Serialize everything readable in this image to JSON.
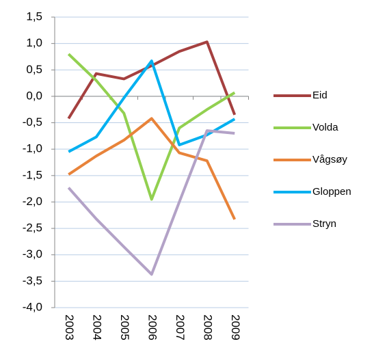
{
  "chart_data": {
    "type": "line",
    "categories": [
      "2003",
      "2004",
      "2005",
      "2006",
      "2007",
      "2008",
      "2009"
    ],
    "series": [
      {
        "name": "Eid",
        "color": "#a5403f",
        "values": [
          -0.42,
          0.43,
          0.33,
          0.58,
          0.85,
          1.03,
          -0.35
        ]
      },
      {
        "name": "Volda",
        "color": "#92d050",
        "values": [
          0.8,
          0.3,
          -0.32,
          -1.95,
          -0.6,
          -0.25,
          0.07
        ]
      },
      {
        "name": "Vågsøy",
        "color": "#e8833a",
        "values": [
          -1.48,
          -1.13,
          -0.83,
          -0.42,
          -1.07,
          -1.22,
          -2.33
        ]
      },
      {
        "name": "Gloppen",
        "color": "#00b0f0",
        "values": [
          -1.05,
          -0.77,
          -0.03,
          0.67,
          -0.92,
          -0.73,
          -0.43
        ]
      },
      {
        "name": "Stryn",
        "color": "#b3a2c7",
        "values": [
          -1.73,
          -2.32,
          -2.85,
          -3.37,
          -2.0,
          -0.65,
          -0.7
        ]
      }
    ],
    "ylim": [
      -4.0,
      1.5
    ],
    "yticks": [
      {
        "value": 1.5,
        "label": "1,5"
      },
      {
        "value": 1.0,
        "label": "1,0"
      },
      {
        "value": 0.5,
        "label": "0,5"
      },
      {
        "value": 0.0,
        "label": "0,0"
      },
      {
        "value": -0.5,
        "label": "-0,5"
      },
      {
        "value": -1.0,
        "label": "-1,0"
      },
      {
        "value": -1.5,
        "label": "-1,5"
      },
      {
        "value": -2.0,
        "label": "-2,0"
      },
      {
        "value": -2.5,
        "label": "-2,5"
      },
      {
        "value": -3.0,
        "label": "-3,0"
      },
      {
        "value": -3.5,
        "label": "-3,5"
      },
      {
        "value": -4.0,
        "label": "-4,0"
      }
    ],
    "grid": true,
    "legend": "right"
  }
}
